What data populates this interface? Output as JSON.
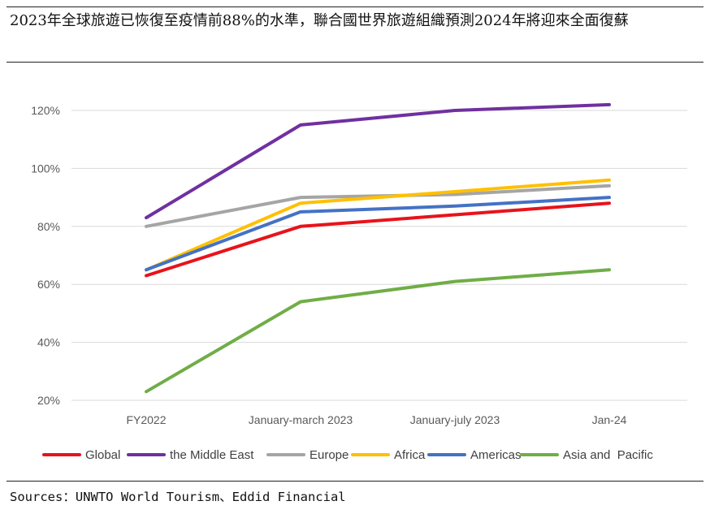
{
  "header": {
    "title": "2023年全球旅遊已恢復至疫情前88%的水準，聯合國世界旅遊組織預測2024年將迎來全面復蘇"
  },
  "footer": {
    "source": "Sources：UNWTO World Tourism、Eddid Financial"
  },
  "chart_data": {
    "type": "line",
    "categories": [
      "FY2022",
      "January-march 2023",
      "January-july 2023",
      "Jan-24"
    ],
    "ylim": [
      20,
      120
    ],
    "yticks": [
      20,
      40,
      60,
      80,
      100,
      120
    ],
    "ytick_labels": [
      "20%",
      "40%",
      "60%",
      "80%",
      "100%",
      "120%"
    ],
    "grid": true,
    "legend_position": "bottom",
    "series": [
      {
        "name": "Global",
        "color": "#e8131b",
        "values": [
          63,
          80,
          84,
          88
        ]
      },
      {
        "name": "the Middle East",
        "color": "#7030a0",
        "values": [
          83,
          115,
          120,
          122
        ]
      },
      {
        "name": "Europe",
        "color": "#a5a5a5",
        "values": [
          80,
          90,
          91,
          94
        ]
      },
      {
        "name": "Africa",
        "color": "#ffc000",
        "values": [
          65,
          88,
          92,
          96
        ]
      },
      {
        "name": "Americas",
        "color": "#4472c4",
        "values": [
          65,
          85,
          87,
          90
        ]
      },
      {
        "name": "Asia and  Pacific",
        "color": "#70ad47",
        "values": [
          23,
          54,
          61,
          65
        ]
      }
    ]
  }
}
